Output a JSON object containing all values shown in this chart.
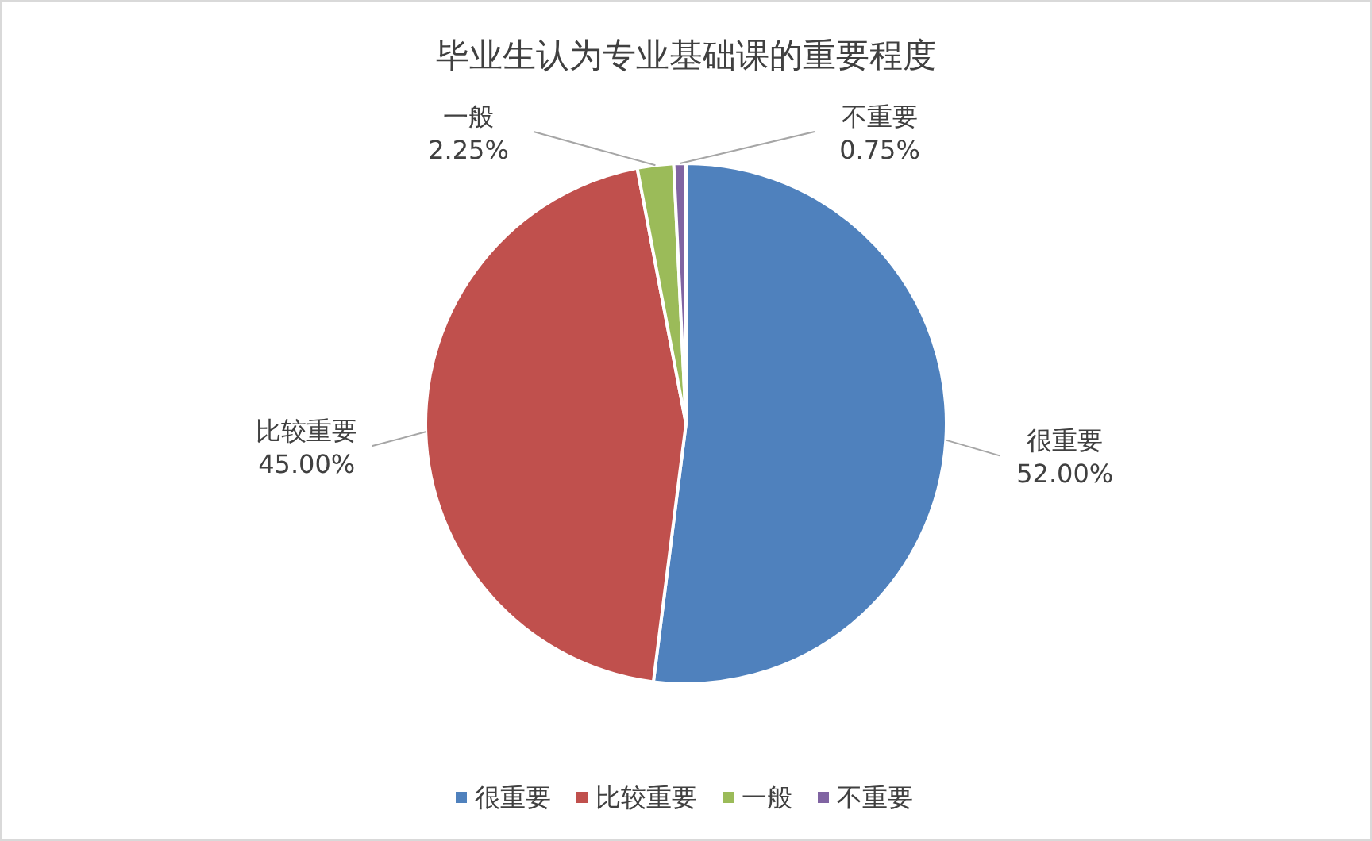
{
  "chart_data": {
    "type": "pie",
    "title": "毕业生认为专业基础课的重要程度",
    "categories": [
      "很重要",
      "比较重要",
      "一般",
      "不重要"
    ],
    "values": [
      52,
      45,
      2.25,
      0.75
    ],
    "value_labels": [
      "52.00%",
      "45.00%",
      "2.25%",
      "0.75%"
    ],
    "colors": [
      "#4f81bd",
      "#c0504d",
      "#9bbb59",
      "#8064a2"
    ],
    "legend": "bottom"
  }
}
